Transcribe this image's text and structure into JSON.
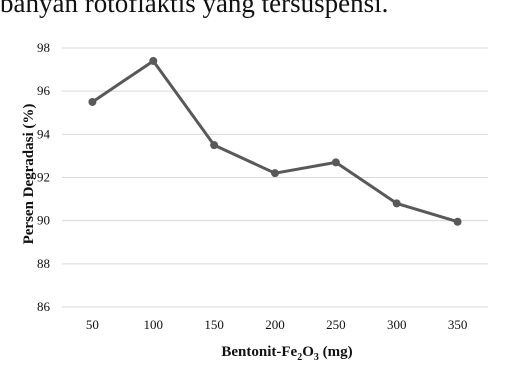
{
  "header": {
    "text": "bahyan rotoflaktis yang tersuspensi."
  },
  "chart_data": {
    "type": "line",
    "title": "",
    "xlabel": {
      "prefix": "Bentonit-Fe",
      "sub1": "2",
      "mid": "O",
      "sub2": "3",
      "suffix": " (mg)"
    },
    "ylabel": "Persen Degradasi (%)",
    "categories": [
      "50",
      "100",
      "150",
      "200",
      "250",
      "300",
      "350"
    ],
    "series": [
      {
        "values": [
          95.5,
          97.4,
          93.5,
          92.2,
          92.7,
          90.8,
          89.95
        ]
      }
    ],
    "ylim": [
      86,
      98
    ],
    "yticks": [
      "86",
      "88",
      "90",
      "92",
      "94",
      "96",
      "98"
    ],
    "grid": true,
    "legend": "none",
    "colors": {
      "line": "#595959",
      "grid": "#d9d9d9",
      "text": "#111111"
    }
  }
}
